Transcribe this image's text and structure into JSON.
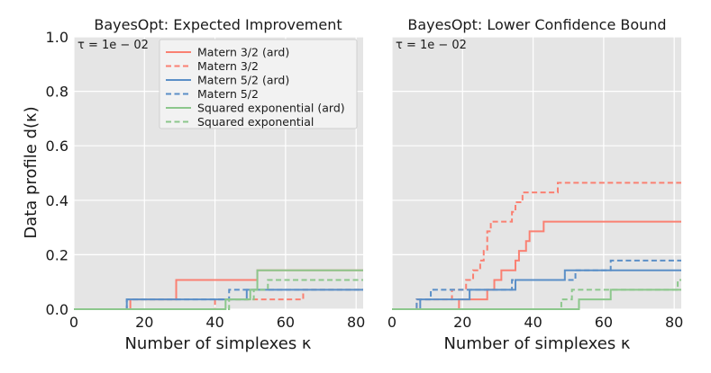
{
  "chart_data": [
    {
      "type": "line",
      "title": "BayesOpt: Expected Improvement",
      "annotation": "τ = 1e − 02",
      "xlabel": "Number of simplexes κ",
      "ylabel": "Data profile d(κ)",
      "xlim": [
        0,
        82
      ],
      "ylim": [
        0,
        1.0
      ],
      "xticks": [
        "0",
        "20",
        "40",
        "60",
        "80"
      ],
      "yticks": [
        "0.0",
        "0.2",
        "0.4",
        "0.6",
        "0.8",
        "1.0"
      ],
      "legend_position": "upper-center",
      "series": [
        {
          "name": "Matern 3/2 (ard)",
          "color": "#fa8072",
          "dash": "solid",
          "steps": [
            [
              0,
              0
            ],
            [
              16,
              0.0357
            ],
            [
              29,
              0.1071
            ],
            [
              52,
              0.1429
            ],
            [
              82,
              0.1429
            ]
          ]
        },
        {
          "name": "Matern 3/2",
          "color": "#fa8072",
          "dash": "dashed",
          "steps": [
            [
              0,
              0
            ],
            [
              40,
              0.0357
            ],
            [
              65,
              0.0714
            ],
            [
              82,
              0.0714
            ]
          ]
        },
        {
          "name": "Matern 5/2 (ard)",
          "color": "#5b8fc7",
          "dash": "solid",
          "steps": [
            [
              0,
              0
            ],
            [
              15,
              0.0357
            ],
            [
              49,
              0.0714
            ],
            [
              82,
              0.0714
            ]
          ]
        },
        {
          "name": "Matern 5/2",
          "color": "#5b8fc7",
          "dash": "dashed",
          "steps": [
            [
              0,
              0
            ],
            [
              15,
              0.0357
            ],
            [
              44,
              0.0714
            ],
            [
              82,
              0.0714
            ]
          ]
        },
        {
          "name": "Squared exponential (ard)",
          "color": "#8cc78c",
          "dash": "solid",
          "steps": [
            [
              0,
              0
            ],
            [
              43,
              0.0357
            ],
            [
              50,
              0.0714
            ],
            [
              52,
              0.1429
            ],
            [
              82,
              0.1429
            ]
          ]
        },
        {
          "name": "Squared exponential",
          "color": "#8cc78c",
          "dash": "dashed",
          "steps": [
            [
              0,
              0
            ],
            [
              44,
              0.0357
            ],
            [
              51,
              0.0714
            ],
            [
              55,
              0.1071
            ],
            [
              82,
              0.1071
            ]
          ]
        }
      ]
    },
    {
      "type": "line",
      "title": "BayesOpt: Lower Confidence Bound",
      "annotation": "τ = 1e − 02",
      "xlabel": "Number of simplexes κ",
      "xlim": [
        0,
        82
      ],
      "ylim": [
        0,
        1.0
      ],
      "xticks": [
        "0",
        "20",
        "40",
        "60",
        "80"
      ],
      "series": [
        {
          "name": "Matern 3/2 (ard)",
          "color": "#fa8072",
          "dash": "solid",
          "steps": [
            [
              0,
              0
            ],
            [
              19,
              0.0357
            ],
            [
              27,
              0.0714
            ],
            [
              29,
              0.1071
            ],
            [
              31,
              0.1429
            ],
            [
              35,
              0.1786
            ],
            [
              36,
              0.2143
            ],
            [
              38,
              0.25
            ],
            [
              39,
              0.2857
            ],
            [
              43,
              0.3214
            ],
            [
              82,
              0.3214
            ]
          ]
        },
        {
          "name": "Matern 3/2",
          "color": "#fa8072",
          "dash": "dashed",
          "steps": [
            [
              0,
              0
            ],
            [
              7,
              0.0357
            ],
            [
              17,
              0.0714
            ],
            [
              21,
              0.1071
            ],
            [
              23,
              0.1429
            ],
            [
              25,
              0.1786
            ],
            [
              26,
              0.2143
            ],
            [
              27,
              0.2857
            ],
            [
              28,
              0.3214
            ],
            [
              34,
              0.3571
            ],
            [
              35,
              0.3929
            ],
            [
              37,
              0.4286
            ],
            [
              47,
              0.4643
            ],
            [
              82,
              0.4643
            ]
          ]
        },
        {
          "name": "Matern 5/2 (ard)",
          "color": "#5b8fc7",
          "dash": "solid",
          "steps": [
            [
              0,
              0
            ],
            [
              8,
              0.0357
            ],
            [
              22,
              0.0714
            ],
            [
              35,
              0.1071
            ],
            [
              49,
              0.1429
            ],
            [
              82,
              0.1429
            ]
          ]
        },
        {
          "name": "Matern 5/2",
          "color": "#5b8fc7",
          "dash": "dashed",
          "steps": [
            [
              0,
              0
            ],
            [
              7,
              0.0357
            ],
            [
              11,
              0.0714
            ],
            [
              34,
              0.1071
            ],
            [
              52,
              0.1429
            ],
            [
              62,
              0.1786
            ],
            [
              82,
              0.1786
            ]
          ]
        },
        {
          "name": "Squared exponential (ard)",
          "color": "#8cc78c",
          "dash": "solid",
          "steps": [
            [
              0,
              0
            ],
            [
              53,
              0.0357
            ],
            [
              62,
              0.0714
            ],
            [
              82,
              0.0714
            ]
          ]
        },
        {
          "name": "Squared exponential",
          "color": "#8cc78c",
          "dash": "dashed",
          "steps": [
            [
              0,
              0
            ],
            [
              48,
              0.0357
            ],
            [
              51,
              0.0714
            ],
            [
              81,
              0.1071
            ],
            [
              82,
              0.1071
            ]
          ]
        }
      ]
    }
  ]
}
